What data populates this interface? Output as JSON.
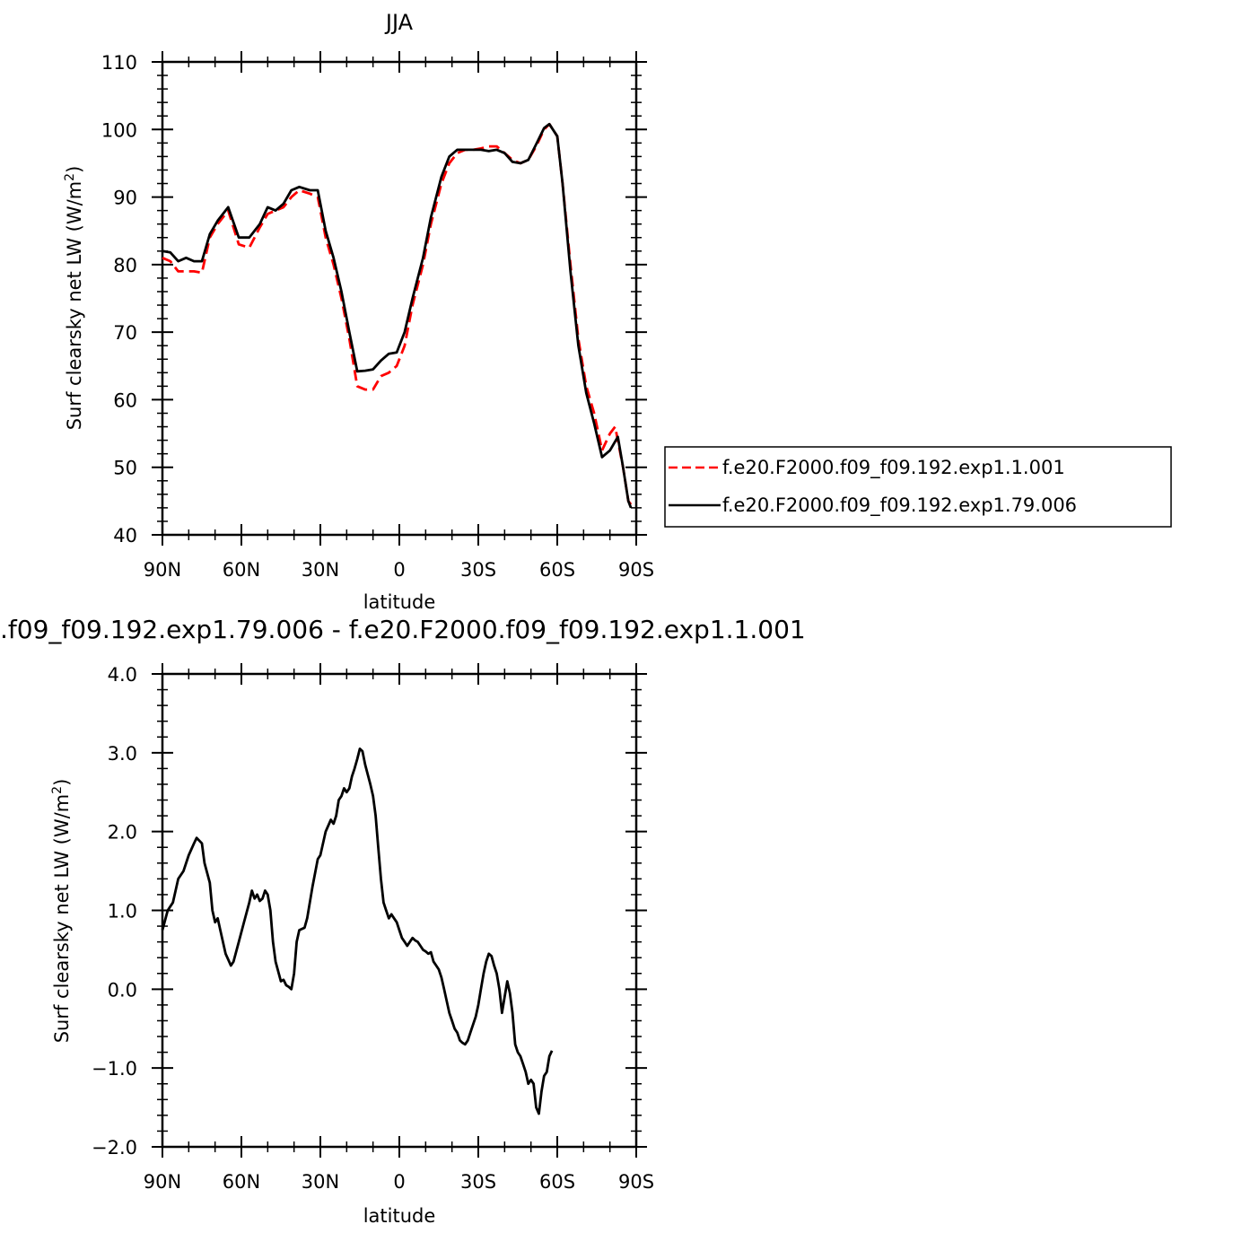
{
  "chart_data": [
    {
      "type": "line",
      "title": "JJA",
      "xlabel": "latitude",
      "ylabel": "Surf clearsky net LW (W/m",
      "ylabel_sup": "2",
      "ylabel_close": ")",
      "xlim": [
        90,
        -90
      ],
      "ylim": [
        40,
        110
      ],
      "x_ticks": [
        {
          "value": 90,
          "label": "90N"
        },
        {
          "value": 60,
          "label": "60N"
        },
        {
          "value": 30,
          "label": "30N"
        },
        {
          "value": 0,
          "label": "0"
        },
        {
          "value": -30,
          "label": "30S"
        },
        {
          "value": -60,
          "label": "60S"
        },
        {
          "value": -90,
          "label": "90S"
        }
      ],
      "y_ticks": [
        "40",
        "50",
        "60",
        "70",
        "80",
        "90",
        "100",
        "110"
      ],
      "legend": {
        "placement": "right"
      },
      "series": [
        {
          "name": "f.e20.F2000.f09_f09.192.exp1.1.001",
          "color": "#ff0000",
          "dash": "dashed",
          "points": [
            [
              90,
              81
            ],
            [
              87,
              80.5
            ],
            [
              84,
              79
            ],
            [
              81,
              79
            ],
            [
              78,
              79
            ],
            [
              75,
              78.8
            ],
            [
              72,
              84
            ],
            [
              69,
              86
            ],
            [
              65,
              88
            ],
            [
              61,
              83
            ],
            [
              57,
              82.5
            ],
            [
              53,
              85.5
            ],
            [
              50,
              87.5
            ],
            [
              47,
              88
            ],
            [
              44,
              88.5
            ],
            [
              41,
              90
            ],
            [
              38,
              91
            ],
            [
              34,
              90.5
            ],
            [
              31,
              90
            ],
            [
              28,
              84
            ],
            [
              25,
              80
            ],
            [
              22,
              75
            ],
            [
              19,
              69
            ],
            [
              16,
              62
            ],
            [
              13,
              61.5
            ],
            [
              10,
              61.5
            ],
            [
              7,
              63.5
            ],
            [
              4,
              64
            ],
            [
              1,
              65
            ],
            [
              -2,
              68
            ],
            [
              -5,
              74
            ],
            [
              -9,
              80
            ],
            [
              -12,
              86
            ],
            [
              -16,
              92
            ],
            [
              -19,
              95
            ],
            [
              -22,
              96.5
            ],
            [
              -25,
              97
            ],
            [
              -28,
              97
            ],
            [
              -31,
              97.2
            ],
            [
              -34,
              97.5
            ],
            [
              -37,
              97.5
            ],
            [
              -40,
              96.5
            ],
            [
              -43,
              95.5
            ],
            [
              -46,
              95
            ],
            [
              -49,
              95.5
            ],
            [
              -52,
              97.5
            ],
            [
              -55,
              100
            ],
            [
              -57,
              100.8
            ],
            [
              -60,
              99
            ],
            [
              -62,
              92
            ],
            [
              -65,
              80
            ],
            [
              -68,
              69
            ],
            [
              -71,
              62
            ],
            [
              -74,
              58
            ],
            [
              -77,
              52.5
            ],
            [
              -80,
              55
            ],
            [
              -82,
              56
            ],
            [
              -85,
              50
            ],
            [
              -87,
              45
            ],
            [
              -88,
              44.5
            ]
          ]
        },
        {
          "name": "f.e20.F2000.f09_f09.192.exp1.79.006",
          "color": "#000000",
          "dash": "solid",
          "points": [
            [
              90,
              82
            ],
            [
              87,
              81.8
            ],
            [
              84,
              80.5
            ],
            [
              81,
              81
            ],
            [
              78,
              80.5
            ],
            [
              75,
              80.5
            ],
            [
              72,
              84.5
            ],
            [
              69,
              86.5
            ],
            [
              65,
              88.5
            ],
            [
              61,
              84
            ],
            [
              57,
              84
            ],
            [
              53,
              86
            ],
            [
              50,
              88.5
            ],
            [
              47,
              88
            ],
            [
              44,
              89
            ],
            [
              41,
              91
            ],
            [
              38,
              91.5
            ],
            [
              34,
              91
            ],
            [
              31,
              91
            ],
            [
              28,
              85
            ],
            [
              25,
              81
            ],
            [
              22,
              76
            ],
            [
              19,
              70
            ],
            [
              16,
              64.2
            ],
            [
              13,
              64.3
            ],
            [
              10,
              64.5
            ],
            [
              7,
              65.8
            ],
            [
              4,
              66.8
            ],
            [
              1,
              67
            ],
            [
              -2,
              70
            ],
            [
              -5,
              75
            ],
            [
              -9,
              81
            ],
            [
              -12,
              87
            ],
            [
              -16,
              93
            ],
            [
              -19,
              96
            ],
            [
              -22,
              97
            ],
            [
              -25,
              97
            ],
            [
              -28,
              97
            ],
            [
              -31,
              97
            ],
            [
              -34,
              96.8
            ],
            [
              -37,
              97
            ],
            [
              -40,
              96.5
            ],
            [
              -43,
              95.2
            ],
            [
              -46,
              95
            ],
            [
              -49,
              95.5
            ],
            [
              -52,
              97.8
            ],
            [
              -55,
              100.2
            ],
            [
              -57,
              100.8
            ],
            [
              -60,
              99
            ],
            [
              -62,
              92
            ],
            [
              -65,
              79
            ],
            [
              -68,
              68
            ],
            [
              -71,
              61
            ],
            [
              -74,
              56.5
            ],
            [
              -77,
              51.5
            ],
            [
              -80,
              52.5
            ],
            [
              -83,
              54.5
            ],
            [
              -85,
              50
            ],
            [
              -87,
              45
            ],
            [
              -88,
              44
            ]
          ]
        }
      ]
    },
    {
      "type": "line",
      "title": ".f09_f09.192.exp1.79.006 - f.e20.F2000.f09_f09.192.exp1.1.001",
      "xlabel": "latitude",
      "ylabel": "Surf clearsky net LW (W/m",
      "ylabel_sup": "2",
      "ylabel_close": ")",
      "xlim": [
        90,
        -90
      ],
      "ylim": [
        -2.0,
        4.0
      ],
      "x_ticks": [
        {
          "value": 90,
          "label": "90N"
        },
        {
          "value": 60,
          "label": "60N"
        },
        {
          "value": 30,
          "label": "30N"
        },
        {
          "value": 0,
          "label": "0"
        },
        {
          "value": -30,
          "label": "30S"
        },
        {
          "value": -60,
          "label": "60S"
        },
        {
          "value": -90,
          "label": "90S"
        }
      ],
      "y_ticks": [
        "−2.0",
        "−1.0",
        "0.0",
        "1.0",
        "2.0",
        "3.0",
        "4.0"
      ],
      "series": [
        {
          "name": "",
          "color": "#000000",
          "dash": "solid",
          "points": [
            [
              90,
              0.75
            ],
            [
              88,
              1.0
            ],
            [
              86,
              1.1
            ],
            [
              84,
              1.4
            ],
            [
              82,
              1.5
            ],
            [
              80,
              1.7
            ],
            [
              78,
              1.85
            ],
            [
              77,
              1.92
            ],
            [
              75,
              1.85
            ],
            [
              74,
              1.6
            ],
            [
              72,
              1.35
            ],
            [
              71,
              1.0
            ],
            [
              70,
              0.85
            ],
            [
              69,
              0.9
            ],
            [
              68,
              0.75
            ],
            [
              66,
              0.45
            ],
            [
              64,
              0.3
            ],
            [
              63,
              0.35
            ],
            [
              61,
              0.6
            ],
            [
              59,
              0.85
            ],
            [
              57,
              1.1
            ],
            [
              56,
              1.25
            ],
            [
              55,
              1.15
            ],
            [
              54,
              1.2
            ],
            [
              53,
              1.12
            ],
            [
              52,
              1.15
            ],
            [
              51,
              1.25
            ],
            [
              50,
              1.2
            ],
            [
              49,
              1.0
            ],
            [
              48,
              0.6
            ],
            [
              47,
              0.35
            ],
            [
              45,
              0.1
            ],
            [
              44,
              0.12
            ],
            [
              43,
              0.05
            ],
            [
              42,
              0.03
            ],
            [
              41,
              0.0
            ],
            [
              40,
              0.2
            ],
            [
              39,
              0.6
            ],
            [
              38,
              0.75
            ],
            [
              36,
              0.78
            ],
            [
              35,
              0.9
            ],
            [
              33,
              1.3
            ],
            [
              31,
              1.65
            ],
            [
              30,
              1.7
            ],
            [
              28,
              2.0
            ],
            [
              26,
              2.15
            ],
            [
              25,
              2.1
            ],
            [
              24,
              2.2
            ],
            [
              23,
              2.4
            ],
            [
              22,
              2.45
            ],
            [
              21,
              2.55
            ],
            [
              20,
              2.5
            ],
            [
              19,
              2.55
            ],
            [
              18,
              2.7
            ],
            [
              17,
              2.8
            ],
            [
              16,
              2.92
            ],
            [
              15,
              3.05
            ],
            [
              14,
              3.02
            ],
            [
              13,
              2.85
            ],
            [
              11,
              2.6
            ],
            [
              10,
              2.45
            ],
            [
              9,
              2.2
            ],
            [
              8,
              1.8
            ],
            [
              7,
              1.4
            ],
            [
              6,
              1.1
            ],
            [
              5,
              1.0
            ],
            [
              4,
              0.9
            ],
            [
              3,
              0.95
            ],
            [
              2,
              0.9
            ],
            [
              1,
              0.85
            ],
            [
              0,
              0.75
            ],
            [
              -1,
              0.65
            ],
            [
              -2,
              0.6
            ],
            [
              -3,
              0.55
            ],
            [
              -4,
              0.6
            ],
            [
              -5,
              0.65
            ],
            [
              -6,
              0.62
            ],
            [
              -7,
              0.6
            ],
            [
              -8,
              0.55
            ],
            [
              -9,
              0.5
            ],
            [
              -10,
              0.48
            ],
            [
              -11,
              0.45
            ],
            [
              -12,
              0.47
            ],
            [
              -13,
              0.35
            ],
            [
              -14,
              0.3
            ],
            [
              -15,
              0.25
            ],
            [
              -16,
              0.15
            ],
            [
              -17,
              0.0
            ],
            [
              -18,
              -0.15
            ],
            [
              -19,
              -0.3
            ],
            [
              -20,
              -0.4
            ],
            [
              -21,
              -0.5
            ],
            [
              -22,
              -0.55
            ],
            [
              -23,
              -0.65
            ],
            [
              -24,
              -0.68
            ],
            [
              -25,
              -0.7
            ],
            [
              -26,
              -0.65
            ],
            [
              -27,
              -0.55
            ],
            [
              -28,
              -0.45
            ],
            [
              -29,
              -0.35
            ],
            [
              -30,
              -0.2
            ],
            [
              -31,
              0.0
            ],
            [
              -32,
              0.2
            ],
            [
              -33,
              0.35
            ],
            [
              -34,
              0.45
            ],
            [
              -35,
              0.42
            ],
            [
              -36,
              0.3
            ],
            [
              -37,
              0.2
            ],
            [
              -38,
              0.0
            ],
            [
              -39,
              -0.3
            ],
            [
              -40,
              -0.1
            ],
            [
              -41,
              0.1
            ],
            [
              -42,
              -0.05
            ],
            [
              -43,
              -0.3
            ],
            [
              -44,
              -0.7
            ],
            [
              -45,
              -0.8
            ],
            [
              -46,
              -0.85
            ],
            [
              -47,
              -0.95
            ],
            [
              -48,
              -1.05
            ],
            [
              -49,
              -1.2
            ],
            [
              -50,
              -1.15
            ],
            [
              -51,
              -1.2
            ],
            [
              -52,
              -1.5
            ],
            [
              -53,
              -1.58
            ],
            [
              -54,
              -1.3
            ],
            [
              -55,
              -1.1
            ],
            [
              -56,
              -1.05
            ],
            [
              -57,
              -0.85
            ],
            [
              -58,
              -0.78
            ]
          ]
        }
      ]
    }
  ],
  "legend_entries": [
    "f.e20.F2000.f09_f09.192.exp1.1.001",
    "f.e20.F2000.f09_f09.192.exp1.79.006"
  ]
}
